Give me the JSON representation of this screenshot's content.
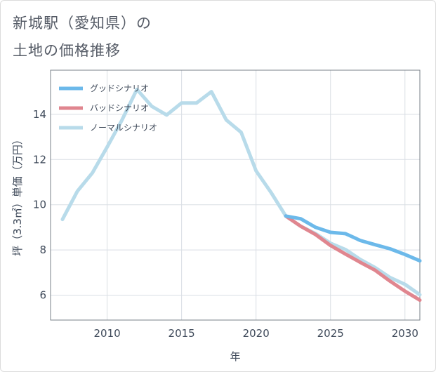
{
  "title": {
    "line1": "新城駅（愛知県）の",
    "line2": "土地の価格推移"
  },
  "colors": {
    "good": "#6cb9ea",
    "bad": "#e0868f",
    "normal": "#b8dbea",
    "grid": "#d9dee4",
    "plot_border": "#7a8088"
  },
  "chart_data": {
    "type": "line",
    "title": "新城駅（愛知県）の土地の価格推移",
    "xlabel": "年",
    "ylabel": "坪（3.3㎡）単価（万円）",
    "xlim": [
      2006.2,
      2031
    ],
    "ylim": [
      4.9,
      15.95
    ],
    "xticks": [
      2010,
      2015,
      2020,
      2025,
      2030
    ],
    "yticks": [
      6,
      8,
      10,
      12,
      14
    ],
    "grid": true,
    "legend_position": "top-left",
    "series": [
      {
        "name": "グッドシナリオ",
        "key": "good",
        "x": [
          2022,
          2023,
          2024,
          2025,
          2026,
          2027,
          2028,
          2029,
          2030,
          2031
        ],
        "y": [
          9.5,
          9.38,
          9.0,
          8.78,
          8.72,
          8.42,
          8.23,
          8.05,
          7.8,
          7.52
        ]
      },
      {
        "name": "バッドシナリオ",
        "key": "bad",
        "x": [
          2022,
          2023,
          2024,
          2025,
          2026,
          2027,
          2028,
          2029,
          2030,
          2031
        ],
        "y": [
          9.5,
          9.05,
          8.68,
          8.2,
          7.82,
          7.45,
          7.1,
          6.62,
          6.18,
          5.78
        ]
      },
      {
        "name": "ノーマルシナリオ",
        "key": "normal",
        "x": [
          2007,
          2008,
          2009,
          2010,
          2011,
          2012,
          2013,
          2014,
          2015,
          2016,
          2017,
          2018,
          2019,
          2020,
          2021,
          2022,
          2023,
          2024,
          2025,
          2026,
          2027,
          2028,
          2029,
          2030,
          2031
        ],
        "y": [
          9.35,
          10.6,
          11.4,
          12.55,
          13.75,
          15.1,
          14.35,
          13.97,
          14.5,
          14.5,
          15.0,
          13.75,
          13.2,
          11.5,
          10.55,
          9.5,
          9.05,
          8.72,
          8.3,
          8.02,
          7.58,
          7.22,
          6.78,
          6.48,
          6.02
        ]
      }
    ]
  }
}
